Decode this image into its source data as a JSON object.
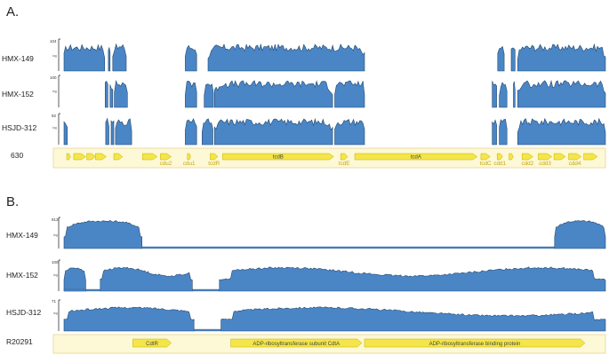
{
  "colors": {
    "coverage_fill": "#4a86c6",
    "coverage_stroke": "#25486e",
    "gene_fill": "#f4e64a",
    "gene_stroke": "#c7b000",
    "gene_band": "#fdf8d6",
    "gene_band_border": "#e2d18a",
    "label_text": "#c8a600"
  },
  "panels": [
    {
      "letter": "A.",
      "reference": "630",
      "tracks": [
        {
          "name": "HMX-149",
          "ymax": "104",
          "log_label": "log",
          "segments": [
            [
              0.0,
              0.075
            ],
            [
              0.082,
              0.085
            ],
            [
              0.09,
              0.115
            ],
            [
              0.224,
              0.245
            ],
            [
              0.266,
              0.555
            ],
            [
              0.801,
              0.813
            ],
            [
              0.826,
              0.833
            ],
            [
              0.838,
              1.0
            ]
          ]
        },
        {
          "name": "HMX-152",
          "ymax": "100",
          "log_label": "log",
          "segments": [
            [
              0.076,
              0.081
            ],
            [
              0.085,
              0.09
            ],
            [
              0.093,
              0.117
            ],
            [
              0.224,
              0.245
            ],
            [
              0.259,
              0.276
            ],
            [
              0.278,
              0.496
            ],
            [
              0.5,
              0.555
            ],
            [
              0.791,
              0.799
            ],
            [
              0.804,
              0.818
            ],
            [
              0.83,
              0.833
            ],
            [
              0.838,
              1.0
            ]
          ]
        },
        {
          "name": "HSJD-312",
          "ymax": "92",
          "log_label": "log",
          "segments": [
            [
              0.0,
              0.006
            ],
            [
              0.077,
              0.083
            ],
            [
              0.087,
              0.092
            ],
            [
              0.095,
              0.125
            ],
            [
              0.224,
              0.245
            ],
            [
              0.255,
              0.275
            ],
            [
              0.278,
              0.496
            ],
            [
              0.5,
              0.555
            ],
            [
              0.791,
              0.799
            ],
            [
              0.804,
              0.818
            ],
            [
              0.838,
              1.0
            ]
          ]
        }
      ],
      "genes": [
        {
          "label": "",
          "sub": "",
          "start": 0.005,
          "end": 0.012
        },
        {
          "label": "",
          "sub": "",
          "start": 0.018,
          "end": 0.04
        },
        {
          "label": "",
          "sub": "",
          "start": 0.042,
          "end": 0.058
        },
        {
          "label": "",
          "sub": "",
          "start": 0.058,
          "end": 0.078
        },
        {
          "label": "",
          "sub": "",
          "start": 0.092,
          "end": 0.108
        },
        {
          "label": "",
          "sub": "",
          "start": 0.145,
          "end": 0.172
        },
        {
          "label": "",
          "sub": "cdu2",
          "start": 0.178,
          "end": 0.198
        },
        {
          "label": "",
          "sub": "cdu1",
          "start": 0.228,
          "end": 0.234
        },
        {
          "label": "",
          "sub": "tcdR",
          "start": 0.27,
          "end": 0.284
        },
        {
          "label": "tcdB",
          "sub": "",
          "start": 0.293,
          "end": 0.498
        },
        {
          "label": "",
          "sub": "tcdE",
          "start": 0.511,
          "end": 0.524
        },
        {
          "label": "tcdA",
          "sub": "",
          "start": 0.537,
          "end": 0.763
        },
        {
          "label": "",
          "sub": "tcdC",
          "start": 0.77,
          "end": 0.787
        },
        {
          "label": "",
          "sub": "cdd1",
          "start": 0.8,
          "end": 0.81
        },
        {
          "label": "",
          "sub": "",
          "start": 0.822,
          "end": 0.83
        },
        {
          "label": "",
          "sub": "cdd2",
          "start": 0.846,
          "end": 0.866
        },
        {
          "label": "",
          "sub": "cdd3",
          "start": 0.876,
          "end": 0.901
        },
        {
          "label": "",
          "sub": "",
          "start": 0.905,
          "end": 0.926
        },
        {
          "label": "",
          "sub": "cdd4",
          "start": 0.932,
          "end": 0.955
        },
        {
          "label": "",
          "sub": "",
          "start": 0.96,
          "end": 0.985
        }
      ]
    },
    {
      "letter": "B.",
      "reference": "R20291",
      "tracks": [
        {
          "name": "HMX-149",
          "ymax": "913",
          "log_label": "log",
          "segments": [
            [
              0.0,
              0.144
            ],
            [
              0.906,
              1.0
            ]
          ],
          "low_bars": [
            [
              0.144,
              0.906
            ]
          ]
        },
        {
          "name": "HMX-152",
          "ymax": "100",
          "log_label": "log",
          "segments": [
            [
              0.0,
              0.04
            ],
            [
              0.067,
              0.237
            ],
            [
              0.287,
              1.0
            ]
          ],
          "low_bars": [
            [
              0.0,
              0.04
            ],
            [
              0.04,
              0.067
            ],
            [
              0.237,
              0.287
            ]
          ]
        },
        {
          "name": "HSJD-312",
          "ymax": "71",
          "log_label": "log",
          "segments": [
            [
              0.0,
              0.24
            ],
            [
              0.29,
              1.0
            ]
          ],
          "low_bars": [
            [
              0.24,
              0.29
            ]
          ]
        }
      ],
      "genes": [
        {
          "label": "CdtR",
          "start": 0.127,
          "end": 0.198
        },
        {
          "label": "ADP-ribosyltransferase subunit CdtA",
          "start": 0.308,
          "end": 0.55
        },
        {
          "label": "ADP-ribosyltransferase binding protein",
          "start": 0.555,
          "end": 0.962
        }
      ]
    }
  ]
}
